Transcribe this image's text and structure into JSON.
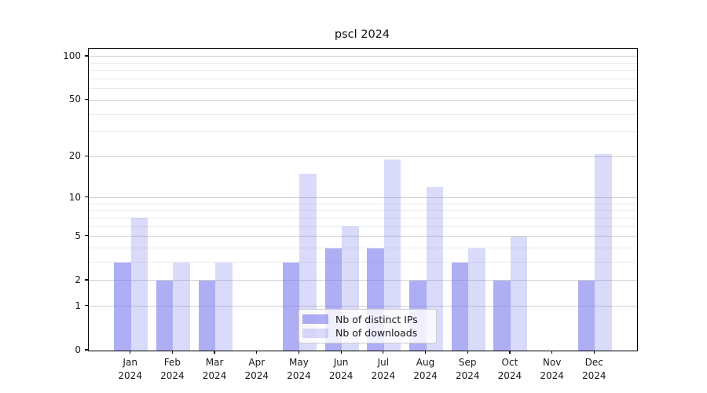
{
  "title": "pscl 2024",
  "chart_data": {
    "type": "bar",
    "title": "pscl 2024",
    "categories": [
      "Jan",
      "Feb",
      "Mar",
      "Apr",
      "May",
      "Jun",
      "Jul",
      "Aug",
      "Sep",
      "Oct",
      "Nov",
      "Dec"
    ],
    "year": "2024",
    "series": [
      {
        "name": "Nb of distinct IPs",
        "values": [
          3,
          2,
          2,
          0,
          3,
          4,
          4,
          2,
          3,
          2,
          0,
          2
        ],
        "color": "rgba(120,120,238,0.6)"
      },
      {
        "name": "Nb of downloads",
        "values": [
          7,
          3,
          3,
          0,
          15,
          6,
          19,
          12,
          4,
          5,
          0,
          21
        ],
        "color": "rgba(120,120,238,0.27)"
      }
    ],
    "y_axis": {
      "scale": "log10(value+1)",
      "ticks": [
        0,
        1,
        2,
        5,
        10,
        20,
        50,
        100
      ],
      "minor_gridlines": [
        3,
        4,
        6,
        7,
        8,
        9,
        30,
        40,
        60,
        70,
        80,
        90
      ],
      "max": 113
    },
    "x_axis": {
      "label_format": "month over year"
    },
    "legend_position": "lower center",
    "grid": true
  },
  "colors": {
    "bar_distinct_ips": "rgba(120,120,238,0.6)",
    "bar_downloads": "rgba(120,120,238,0.27)",
    "major_grid": "#cfcfcf",
    "minor_grid": "#ebebeb",
    "axis": "#000000",
    "text": "#1a1a1a",
    "background": "#ffffff"
  }
}
